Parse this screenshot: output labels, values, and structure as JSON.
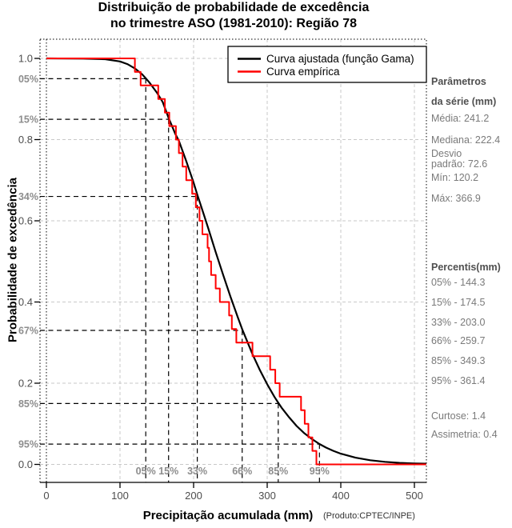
{
  "title": {
    "line1": "Distribuição de probabilidade de excedência",
    "line2": "no trimestre ASO (1981-2010): Região 78"
  },
  "legend": {
    "items": [
      {
        "label": "Curva ajustada (função Gama)",
        "color": "#000000"
      },
      {
        "label": "Curva empírica",
        "color": "#ff0000"
      }
    ]
  },
  "side_panel": {
    "params_header": "Parâmetros\nda série (mm)",
    "params": [
      "Média: 241.2",
      "Mediana: 222.4",
      "Desvio\npadrão: 72.6",
      "Mín: 120.2",
      "Máx: 366.9"
    ],
    "percentis_header": "Percentis(mm)",
    "percentis": [
      "05% - 144.3",
      "15% - 174.5",
      "33% - 203.0",
      "66% - 259.7",
      "85% - 349.3",
      "95% - 361.4"
    ],
    "extras": [
      "Curtose: 1.4",
      "Assimetria: 0.4"
    ]
  },
  "footer": {
    "xlabel": "Precipitação acumulada (mm)",
    "source": "(Produto:CPTEC/INPE)"
  },
  "colors": {
    "empirical": "#ff0000",
    "fitted": "#000000",
    "grid": "#c9c9c9",
    "guide": "#000000",
    "muted_label": "#8d8d8d",
    "axis_label": "#4d4d4d",
    "panel_text": "#7a7a7a",
    "panel_header": "#4f4f4f"
  },
  "chart_data": {
    "type": "line",
    "title": "Distribuição de probabilidade de excedência no trimestre ASO (1981-2010): Região 78",
    "xlabel": "Precipitação acumulada (mm)",
    "ylabel": "Probabilidade de excedência",
    "xlim": [
      0,
      516
    ],
    "ylim": [
      0,
      1
    ],
    "x_ticks": [
      0,
      100,
      200,
      300,
      400,
      500
    ],
    "y_ticks": [
      0.0,
      0.2,
      0.4,
      0.6,
      0.8,
      1.0
    ],
    "y_tick_labels": [
      "0.0",
      "0.2",
      "0.4",
      "0.6",
      "0.8",
      "1.0"
    ],
    "grid": true,
    "legend_position": "top-right",
    "series": [
      {
        "name": "Curva ajustada (função Gama)",
        "color": "#000000",
        "style": "smooth",
        "points": [
          [
            0,
            1.0
          ],
          [
            50,
            0.9995
          ],
          [
            80,
            0.998
          ],
          [
            100,
            0.9925
          ],
          [
            110,
            0.986
          ],
          [
            120,
            0.9755
          ],
          [
            130,
            0.961
          ],
          [
            135,
            0.951
          ],
          [
            140,
            0.9405
          ],
          [
            150,
            0.916
          ],
          [
            158,
            0.8925
          ],
          [
            166,
            0.8535
          ],
          [
            175,
            0.8145
          ],
          [
            180,
            0.797
          ],
          [
            190,
            0.747
          ],
          [
            200,
            0.694
          ],
          [
            205,
            0.6645
          ],
          [
            210,
            0.637
          ],
          [
            220,
            0.581
          ],
          [
            230,
            0.523
          ],
          [
            240,
            0.4675
          ],
          [
            250,
            0.4135
          ],
          [
            260,
            0.3625
          ],
          [
            266,
            0.3333
          ],
          [
            270,
            0.3155
          ],
          [
            280,
            0.2715
          ],
          [
            290,
            0.2325
          ],
          [
            300,
            0.1975
          ],
          [
            310,
            0.166
          ],
          [
            315,
            0.152
          ],
          [
            320,
            0.1385
          ],
          [
            330,
            0.1155
          ],
          [
            340,
            0.0945
          ],
          [
            350,
            0.0775
          ],
          [
            360,
            0.0635
          ],
          [
            371,
            0.0503
          ],
          [
            380,
            0.0413
          ],
          [
            390,
            0.0333
          ],
          [
            400,
            0.0265
          ],
          [
            420,
            0.0165
          ],
          [
            440,
            0.0103
          ],
          [
            460,
            0.0063
          ],
          [
            480,
            0.0038
          ],
          [
            500,
            0.0023
          ],
          [
            516,
            0.0017
          ]
        ]
      },
      {
        "name": "Curva empírica",
        "color": "#ff0000",
        "style": "step-exceedance",
        "n": 30,
        "sorted_values": [
          120.2,
          128,
          152,
          161,
          167,
          176,
          180,
          185,
          190,
          198,
          203,
          208,
          212,
          219,
          221,
          223.8,
          230,
          235.6,
          248.3,
          252,
          258,
          280,
          304,
          311,
          317,
          346,
          351,
          356,
          361.4,
          366.9
        ]
      }
    ],
    "percentile_guides": [
      {
        "label": "05%",
        "exceedance": 0.95,
        "x_mm": 135
      },
      {
        "label": "15%",
        "exceedance": 0.85,
        "x_mm": 166
      },
      {
        "label": "33%",
        "exceedance": 0.66,
        "x_mm": 205
      },
      {
        "label": "66%",
        "exceedance": 0.33,
        "x_mm": 266
      },
      {
        "label": "85%",
        "exceedance": 0.15,
        "x_mm": 315
      },
      {
        "label": "95%",
        "exceedance": 0.05,
        "x_mm": 371
      }
    ],
    "statistics": {
      "media": 241.2,
      "mediana": 222.4,
      "desvio_padrao": 72.6,
      "min": 120.2,
      "max": 366.9,
      "percentis": {
        "05%": 144.3,
        "15%": 174.5,
        "33%": 203.0,
        "66%": 259.7,
        "85%": 349.3,
        "95%": 361.4
      },
      "curtose": 1.4,
      "assimetria": 0.4
    }
  }
}
